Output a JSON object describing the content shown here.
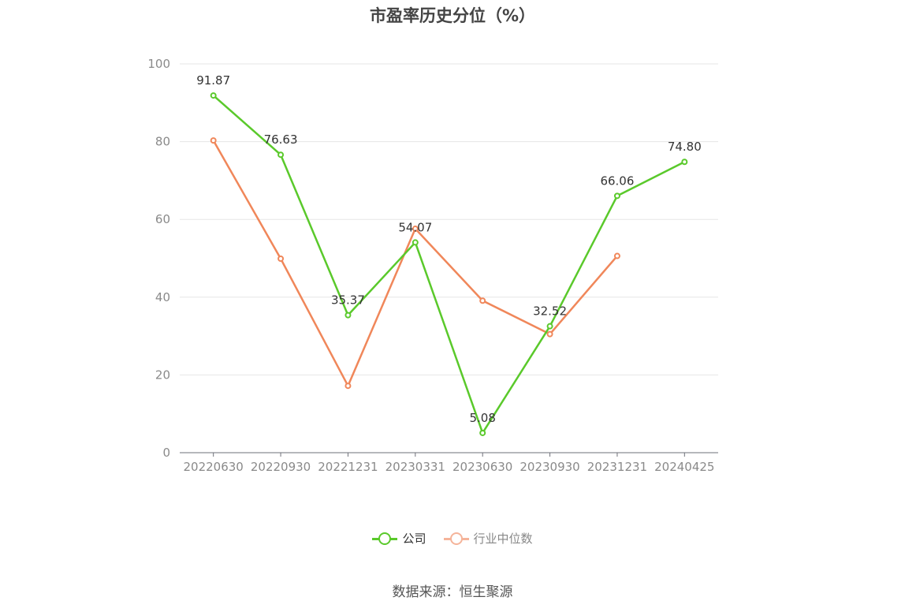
{
  "chart_data": {
    "type": "line",
    "title": "市盈率历史分位（%）",
    "categories": [
      "20220630",
      "20220930",
      "20221231",
      "20230331",
      "20230630",
      "20230930",
      "20231231",
      "20240425"
    ],
    "series": [
      {
        "name": "公司",
        "color": "#5ac92b",
        "values": [
          91.87,
          76.63,
          35.37,
          54.07,
          5.08,
          32.52,
          66.06,
          74.8
        ],
        "labels": [
          "91.87",
          "76.63",
          "35.37",
          "54.07",
          "5.08",
          "32.52",
          "66.06",
          "74.80"
        ]
      },
      {
        "name": "行业中位数",
        "color": "#f0875a",
        "legend_color": "#f5b49a",
        "values": [
          80.3,
          49.9,
          17.2,
          57.6,
          39.1,
          30.5,
          50.6,
          null
        ]
      }
    ],
    "ylim": [
      0,
      100
    ],
    "yticks": [
      0,
      20,
      40,
      60,
      80,
      100
    ],
    "grid": true,
    "legend_position": "bottom"
  },
  "source": "数据来源：恒生聚源"
}
